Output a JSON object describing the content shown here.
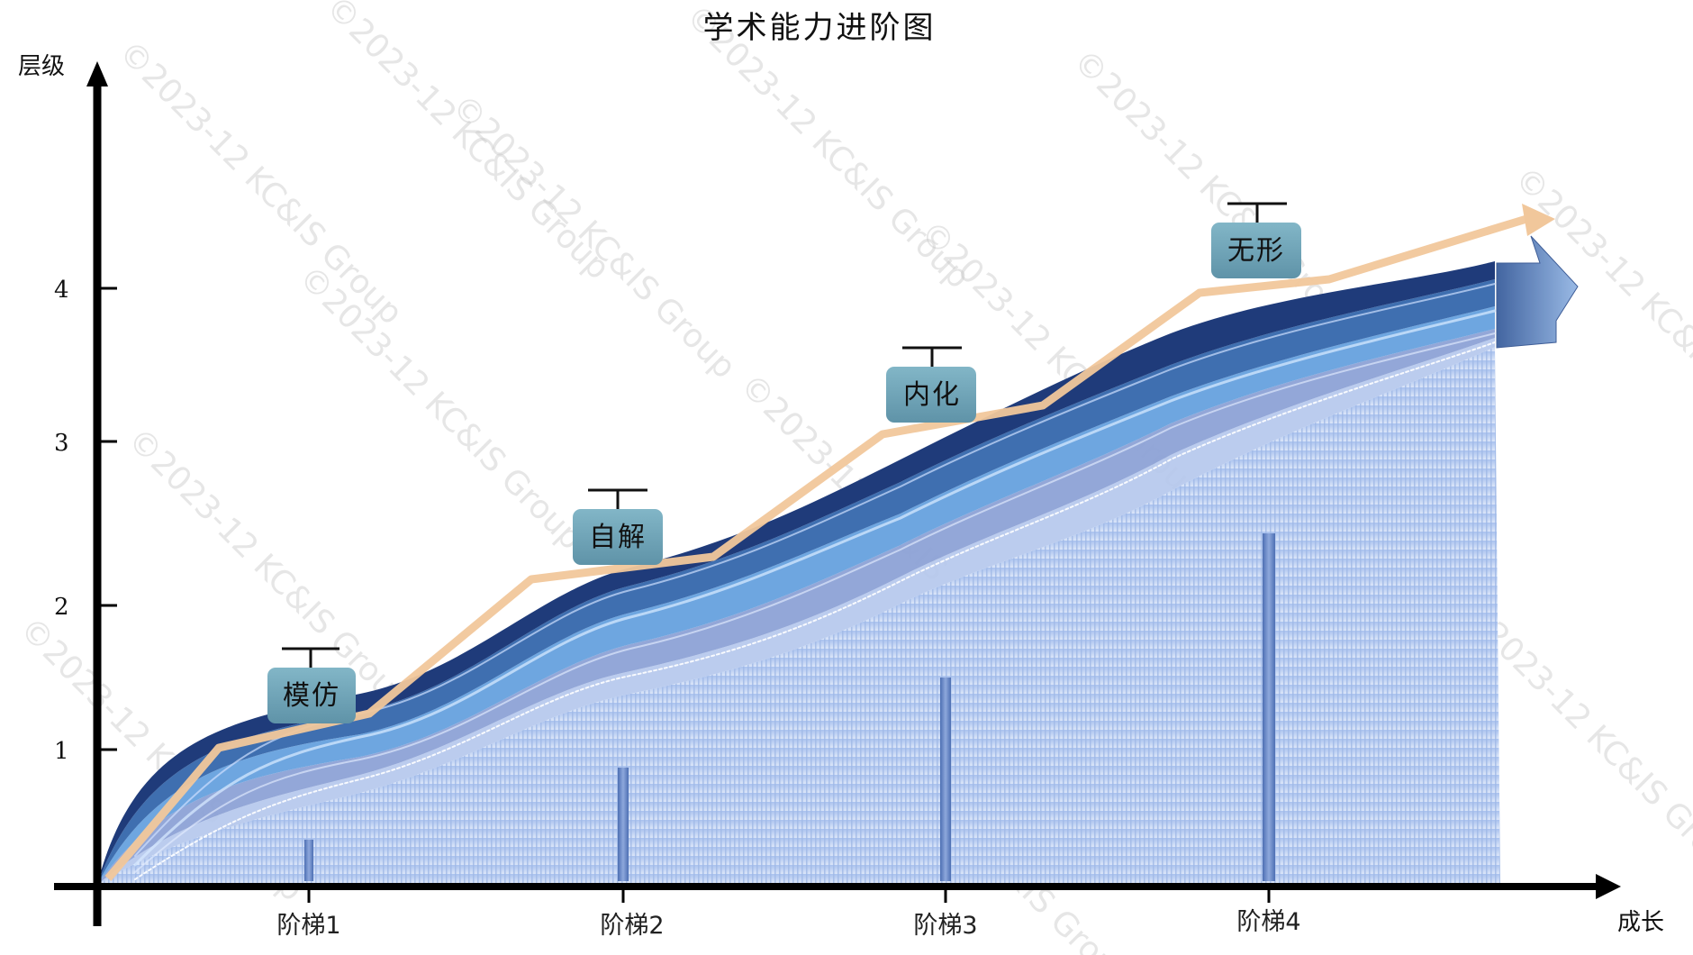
{
  "title": "学术能力进阶图",
  "y_axis_label": "层级",
  "x_axis_label": "成长",
  "y_ticks": [
    "1",
    "2",
    "3",
    "4"
  ],
  "steps": [
    "阶梯1",
    "阶梯2",
    "阶梯3",
    "阶梯4"
  ],
  "stages": [
    "模仿",
    "自解",
    "内化",
    "无形"
  ],
  "watermark": "©2023-12 KC&IS Group",
  "colors": {
    "band_dark": "#1f3b7a",
    "band_mid": "#3f6fb0",
    "band_light": "#6ea6e0",
    "band_pale": "#8aa3d8",
    "base_fill": "#b9cdf0",
    "trend": "#f1c79b",
    "badge": "#6fa3b6"
  }
}
